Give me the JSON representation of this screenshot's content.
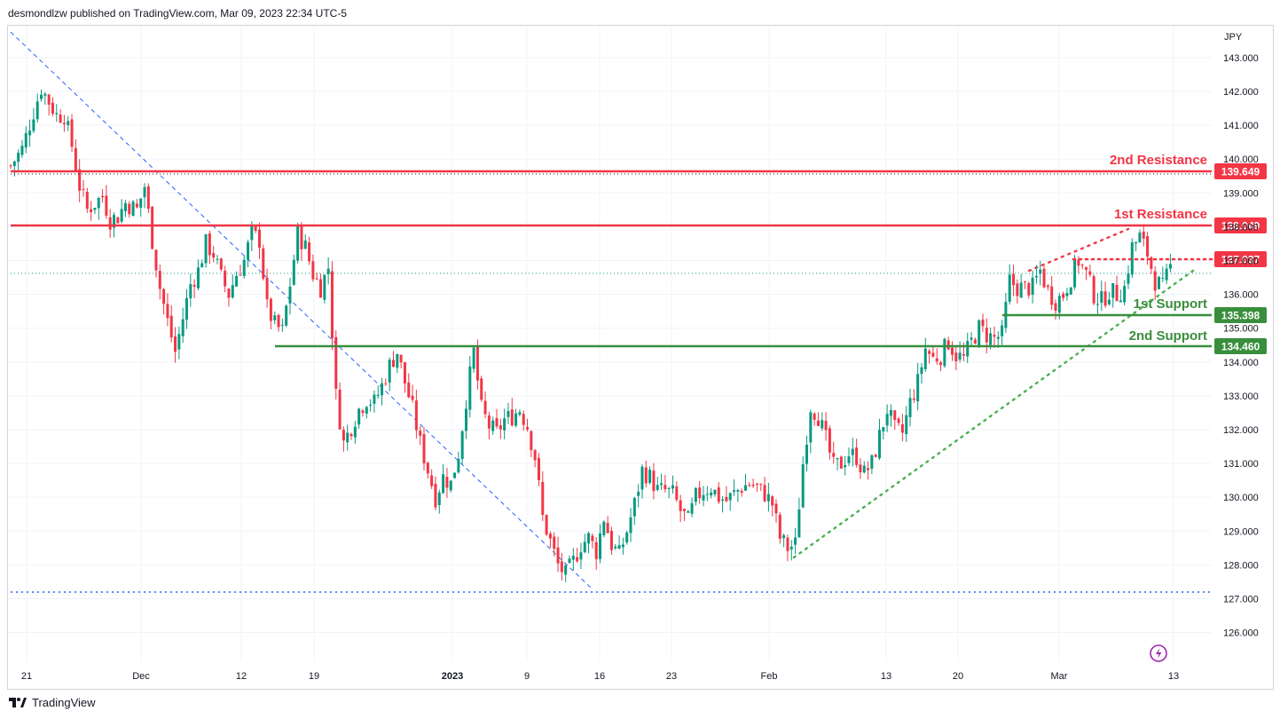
{
  "header": {
    "publisher_line": "desmondlzw published on TradingView.com, Mar 09, 2023 22:34 UTC-5"
  },
  "footer": {
    "brand": "TradingView"
  },
  "chart_data": {
    "type": "candlestick",
    "currency_label": "JPY",
    "y_ticks": [
      "126.000",
      "127.000",
      "128.000",
      "129.000",
      "130.000",
      "131.000",
      "132.000",
      "133.000",
      "134.000",
      "135.000",
      "136.000",
      "137.000",
      "138.000",
      "139.000",
      "140.000",
      "141.000",
      "142.000",
      "143.000"
    ],
    "x_ticks": [
      "21",
      "Dec",
      "12",
      "19",
      "2023",
      "9",
      "16",
      "23",
      "Feb",
      "13",
      "20",
      "Mar",
      "13"
    ],
    "x_tick_bold": [
      "2023"
    ],
    "ylim": [
      125.2,
      143.6
    ],
    "levels": [
      {
        "name": "2nd Resistance",
        "value": "139.649",
        "color": "#f23645"
      },
      {
        "name": "1st Resistance",
        "value": "138.049",
        "color": "#f23645"
      },
      {
        "name": "",
        "value": "137.037",
        "color": "#f23645"
      },
      {
        "name": "1st Support",
        "value": "135.398",
        "color": "#388e3c"
      },
      {
        "name": "2nd Support",
        "value": "134.460",
        "color": "#388e3c"
      }
    ],
    "low_dotted_level": 127.2,
    "current_price_dotted": 136.6,
    "candles_summary": "USDJPY daily candles from Nov 17 2022 to Mar 9 2023 (approximated)",
    "price_path": [
      [
        0,
        139.8
      ],
      [
        3,
        140.3
      ],
      [
        6,
        141.4
      ],
      [
        8,
        142.1
      ],
      [
        10,
        141.7
      ],
      [
        12,
        141.3
      ],
      [
        14,
        141.3
      ],
      [
        16,
        140.4
      ],
      [
        18,
        139.2
      ],
      [
        20,
        138.5
      ],
      [
        22,
        138.7
      ],
      [
        24,
        138.9
      ],
      [
        26,
        138.2
      ],
      [
        28,
        138.3
      ],
      [
        30,
        138.7
      ],
      [
        33,
        138.5
      ],
      [
        35,
        139.2
      ],
      [
        37,
        137.6
      ],
      [
        39,
        136.2
      ],
      [
        41,
        135.2
      ],
      [
        43,
        134.3
      ],
      [
        45,
        135.3
      ],
      [
        47,
        136.3
      ],
      [
        49,
        136.7
      ],
      [
        51,
        137.5
      ],
      [
        53,
        137.2
      ],
      [
        55,
        136.5
      ],
      [
        57,
        136.0
      ],
      [
        59,
        136.6
      ],
      [
        61,
        137.0
      ],
      [
        63,
        137.8
      ],
      [
        65,
        137.6
      ],
      [
        67,
        135.6
      ],
      [
        69,
        135.1
      ],
      [
        71,
        134.9
      ],
      [
        73,
        136.3
      ],
      [
        75,
        137.8
      ],
      [
        77,
        137.4
      ],
      [
        79,
        136.6
      ],
      [
        81,
        136.2
      ],
      [
        83,
        136.8
      ],
      [
        85,
        133.0
      ],
      [
        87,
        131.6
      ],
      [
        89,
        132.1
      ],
      [
        91,
        132.6
      ],
      [
        93,
        132.9
      ],
      [
        95,
        132.8
      ],
      [
        97,
        133.3
      ],
      [
        99,
        133.9
      ],
      [
        101,
        134.3
      ],
      [
        103,
        133.4
      ],
      [
        105,
        132.6
      ],
      [
        107,
        131.6
      ],
      [
        109,
        130.8
      ],
      [
        111,
        130.0
      ],
      [
        113,
        130.6
      ],
      [
        115,
        130.4
      ],
      [
        117,
        131.3
      ],
      [
        119,
        132.9
      ],
      [
        121,
        134.3
      ],
      [
        123,
        132.6
      ],
      [
        125,
        132.1
      ],
      [
        127,
        131.9
      ],
      [
        129,
        132.3
      ],
      [
        131,
        132.4
      ],
      [
        133,
        132.6
      ],
      [
        135,
        132.1
      ],
      [
        137,
        131.2
      ],
      [
        139,
        129.4
      ],
      [
        141,
        128.7
      ],
      [
        143,
        128.0
      ],
      [
        145,
        127.7
      ],
      [
        147,
        128.1
      ],
      [
        149,
        128.6
      ],
      [
        151,
        128.8
      ],
      [
        153,
        128.4
      ],
      [
        155,
        129.4
      ],
      [
        157,
        128.6
      ],
      [
        159,
        128.3
      ],
      [
        161,
        129.0
      ],
      [
        163,
        129.8
      ],
      [
        165,
        130.8
      ],
      [
        167,
        130.6
      ],
      [
        169,
        130.2
      ],
      [
        171,
        130.2
      ],
      [
        173,
        130.1
      ],
      [
        175,
        129.6
      ],
      [
        177,
        129.3
      ],
      [
        179,
        130.0
      ],
      [
        181,
        130.2
      ],
      [
        183,
        130.3
      ],
      [
        185,
        130.0
      ],
      [
        187,
        129.9
      ],
      [
        189,
        130.1
      ],
      [
        191,
        130.3
      ],
      [
        193,
        130.4
      ],
      [
        195,
        130.3
      ],
      [
        197,
        130.1
      ],
      [
        199,
        129.8
      ],
      [
        201,
        128.8
      ],
      [
        203,
        128.5
      ],
      [
        205,
        128.6
      ],
      [
        207,
        131.0
      ],
      [
        209,
        132.7
      ],
      [
        211,
        132.4
      ],
      [
        213,
        131.7
      ],
      [
        215,
        130.9
      ],
      [
        217,
        131.0
      ],
      [
        219,
        131.3
      ],
      [
        221,
        131.2
      ],
      [
        223,
        130.7
      ],
      [
        225,
        131.0
      ],
      [
        227,
        131.8
      ],
      [
        229,
        132.6
      ],
      [
        231,
        132.0
      ],
      [
        233,
        131.9
      ],
      [
        235,
        132.8
      ],
      [
        237,
        133.4
      ],
      [
        239,
        134.4
      ],
      [
        241,
        134.1
      ],
      [
        243,
        134.2
      ],
      [
        245,
        134.6
      ],
      [
        247,
        134.2
      ],
      [
        249,
        134.1
      ],
      [
        251,
        134.6
      ],
      [
        253,
        135.0
      ],
      [
        255,
        134.8
      ],
      [
        257,
        134.7
      ],
      [
        259,
        134.8
      ],
      [
        261,
        136.4
      ],
      [
        263,
        136.2
      ],
      [
        265,
        136.2
      ],
      [
        267,
        136.2
      ],
      [
        269,
        136.7
      ],
      [
        271,
        136.1
      ],
      [
        273,
        135.8
      ],
      [
        275,
        136.0
      ],
      [
        277,
        136.5
      ],
      [
        279,
        137.0
      ],
      [
        281,
        136.6
      ],
      [
        283,
        136.0
      ],
      [
        285,
        135.8
      ],
      [
        287,
        136.1
      ],
      [
        289,
        136.0
      ],
      [
        291,
        136.2
      ],
      [
        293,
        137.4
      ],
      [
        295,
        137.7
      ],
      [
        297,
        137.2
      ],
      [
        299,
        136.4
      ],
      [
        301,
        136.2
      ],
      [
        303,
        136.8
      ]
    ]
  }
}
